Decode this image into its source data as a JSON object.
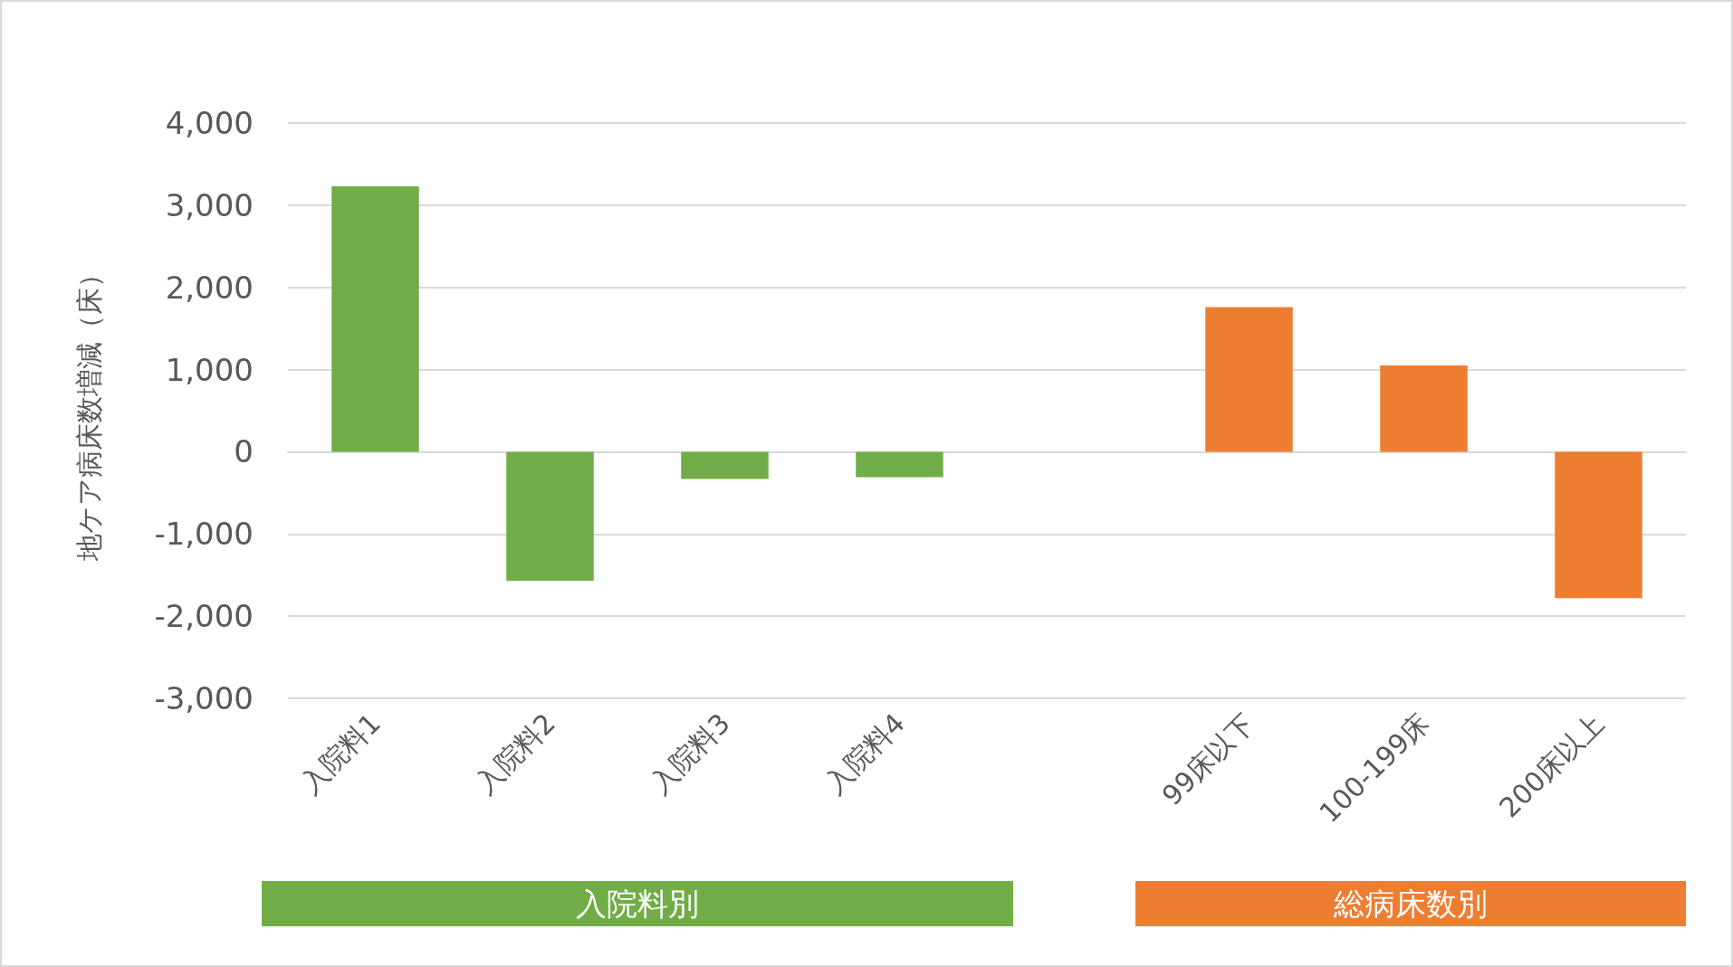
{
  "chart_data": {
    "type": "bar",
    "ylabel": "地ケア病床数増減（床）",
    "categories": [
      "入院料1",
      "入院料2",
      "入院料3",
      "入院料4",
      null,
      "99床以下",
      "100-199床",
      "200床以上"
    ],
    "values": [
      3230,
      -1570,
      -330,
      -310,
      null,
      1760,
      1050,
      -1780
    ],
    "colors": [
      "#70ad47",
      "#70ad47",
      "#70ad47",
      "#70ad47",
      null,
      "#ed7d31",
      "#ed7d31",
      "#ed7d31"
    ],
    "ylim": [
      -3000,
      4000
    ],
    "yticks": [
      {
        "value": -3000,
        "label": "-3,000"
      },
      {
        "value": -2000,
        "label": "-2,000"
      },
      {
        "value": -1000,
        "label": "-1,000"
      },
      0,
      {
        "value": 1000,
        "label": "1,000"
      },
      {
        "value": 2000,
        "label": "2,000"
      },
      {
        "value": 3000,
        "label": "3,000"
      },
      {
        "value": 4000,
        "label": "4,000"
      }
    ],
    "grid": "y",
    "annotations": [
      "入院料別",
      "総病床数別"
    ]
  }
}
